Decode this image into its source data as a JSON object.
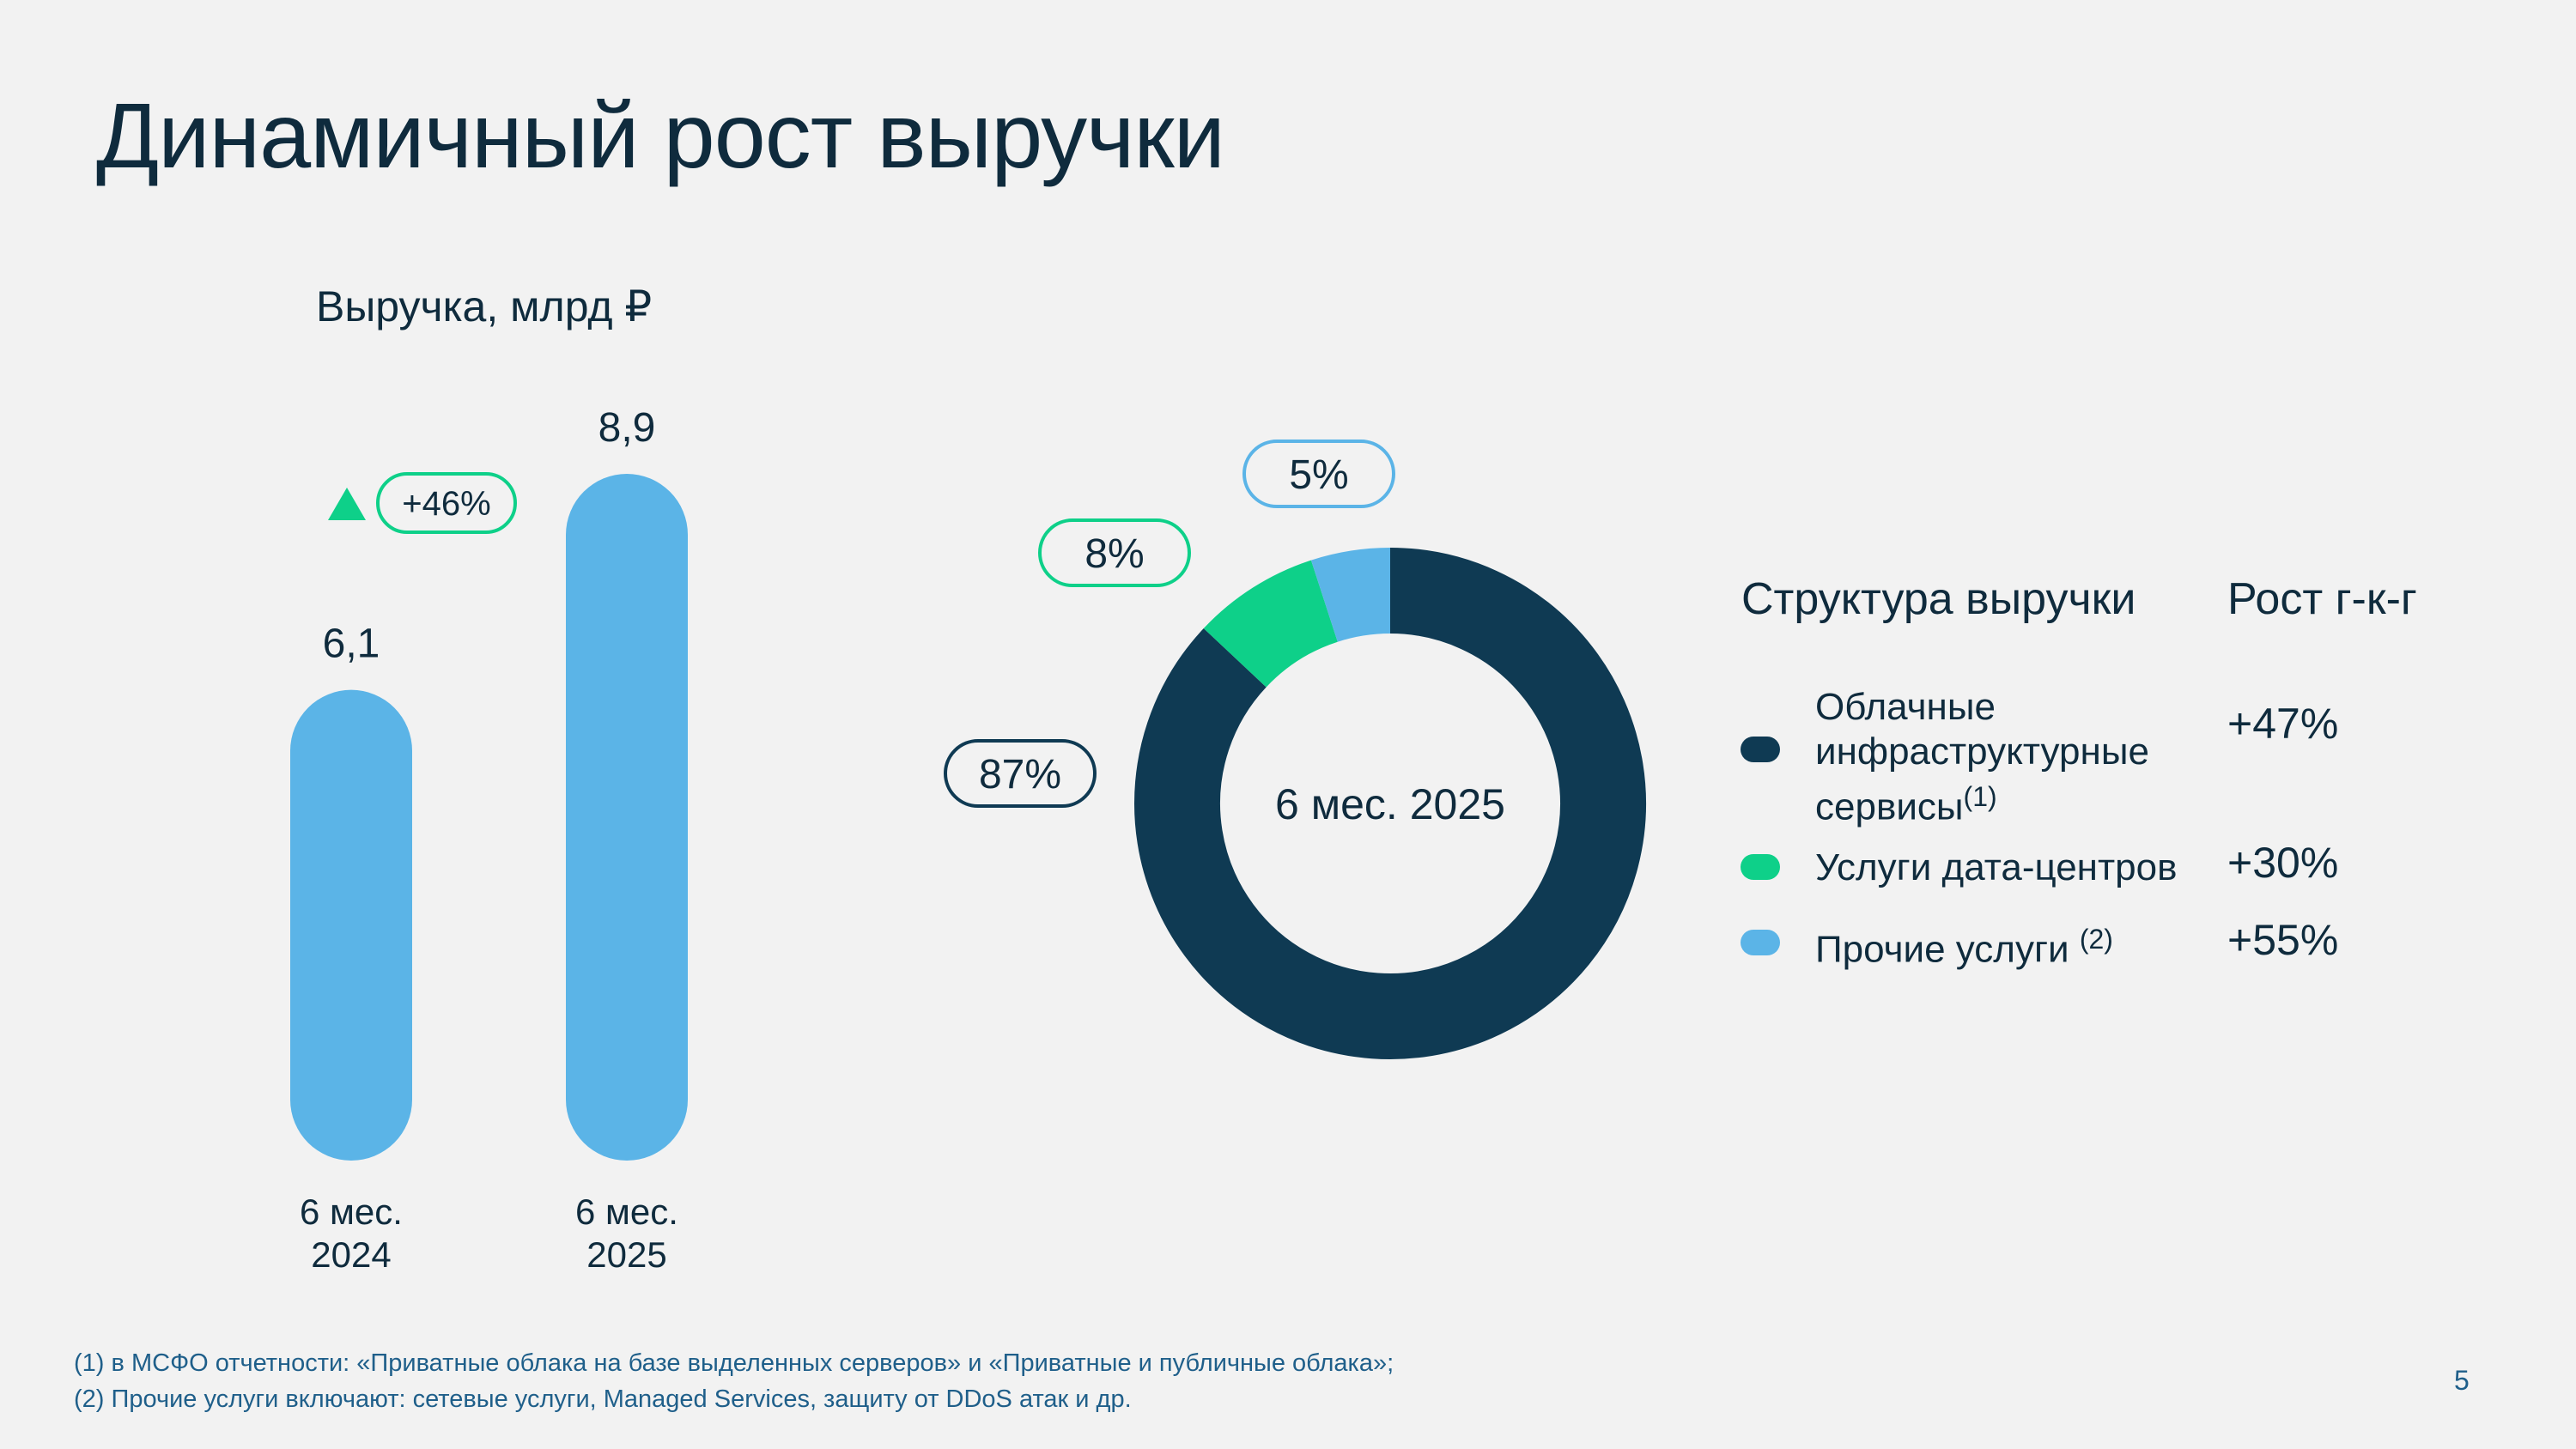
{
  "title": "Динамичный рост выручки",
  "colors": {
    "navy": "#0f3a53",
    "green": "#0ed089",
    "blue": "#5bb4e7",
    "text": "#0f2b3d"
  },
  "chart_data": [
    {
      "type": "bar",
      "title": "Выручка, млрд ₽",
      "categories": [
        [
          "6 мес.",
          "2024"
        ],
        [
          "6 мес.",
          "2025"
        ]
      ],
      "values": [
        6.1,
        8.9
      ],
      "value_labels": [
        "6,1",
        "8,9"
      ],
      "growth_label": "+46%",
      "growth_icon": "triangle-up-icon",
      "color": "#5bb4e7"
    },
    {
      "type": "pie",
      "center_label": "6 мес. 2025",
      "slices": [
        {
          "name": "Облачные инфраструктурные сервисы",
          "value": 87,
          "label": "87%",
          "color": "#0f3a53"
        },
        {
          "name": "Услуги дата-центров",
          "value": 8,
          "label": "8%",
          "color": "#0ed089"
        },
        {
          "name": "Прочие услуги",
          "value": 5,
          "label": "5%",
          "color": "#5bb4e7"
        }
      ]
    }
  ],
  "legend": {
    "structure_header": "Структура выручки",
    "growth_header": "Рост г-к-г",
    "items": [
      {
        "label": "Облачные инфраструктурные сервисы",
        "sup": "(1)",
        "growth": "+47%",
        "color": "#0f3a53"
      },
      {
        "label": "Услуги дата-центров",
        "sup": "",
        "growth": "+30%",
        "color": "#0ed089"
      },
      {
        "label": "Прочие услуги",
        "sup": "(2)",
        "growth": "+55%",
        "color": "#5bb4e7"
      }
    ]
  },
  "footnotes": [
    "(1) в МСФО отчетности: «Приватные облака на базе выделенных серверов» и «Приватные и публичные облака»;",
    "(2) Прочие услуги включают: сетевые услуги, Managed Services, защиту от DDoS атак и др."
  ],
  "page_number": "5"
}
